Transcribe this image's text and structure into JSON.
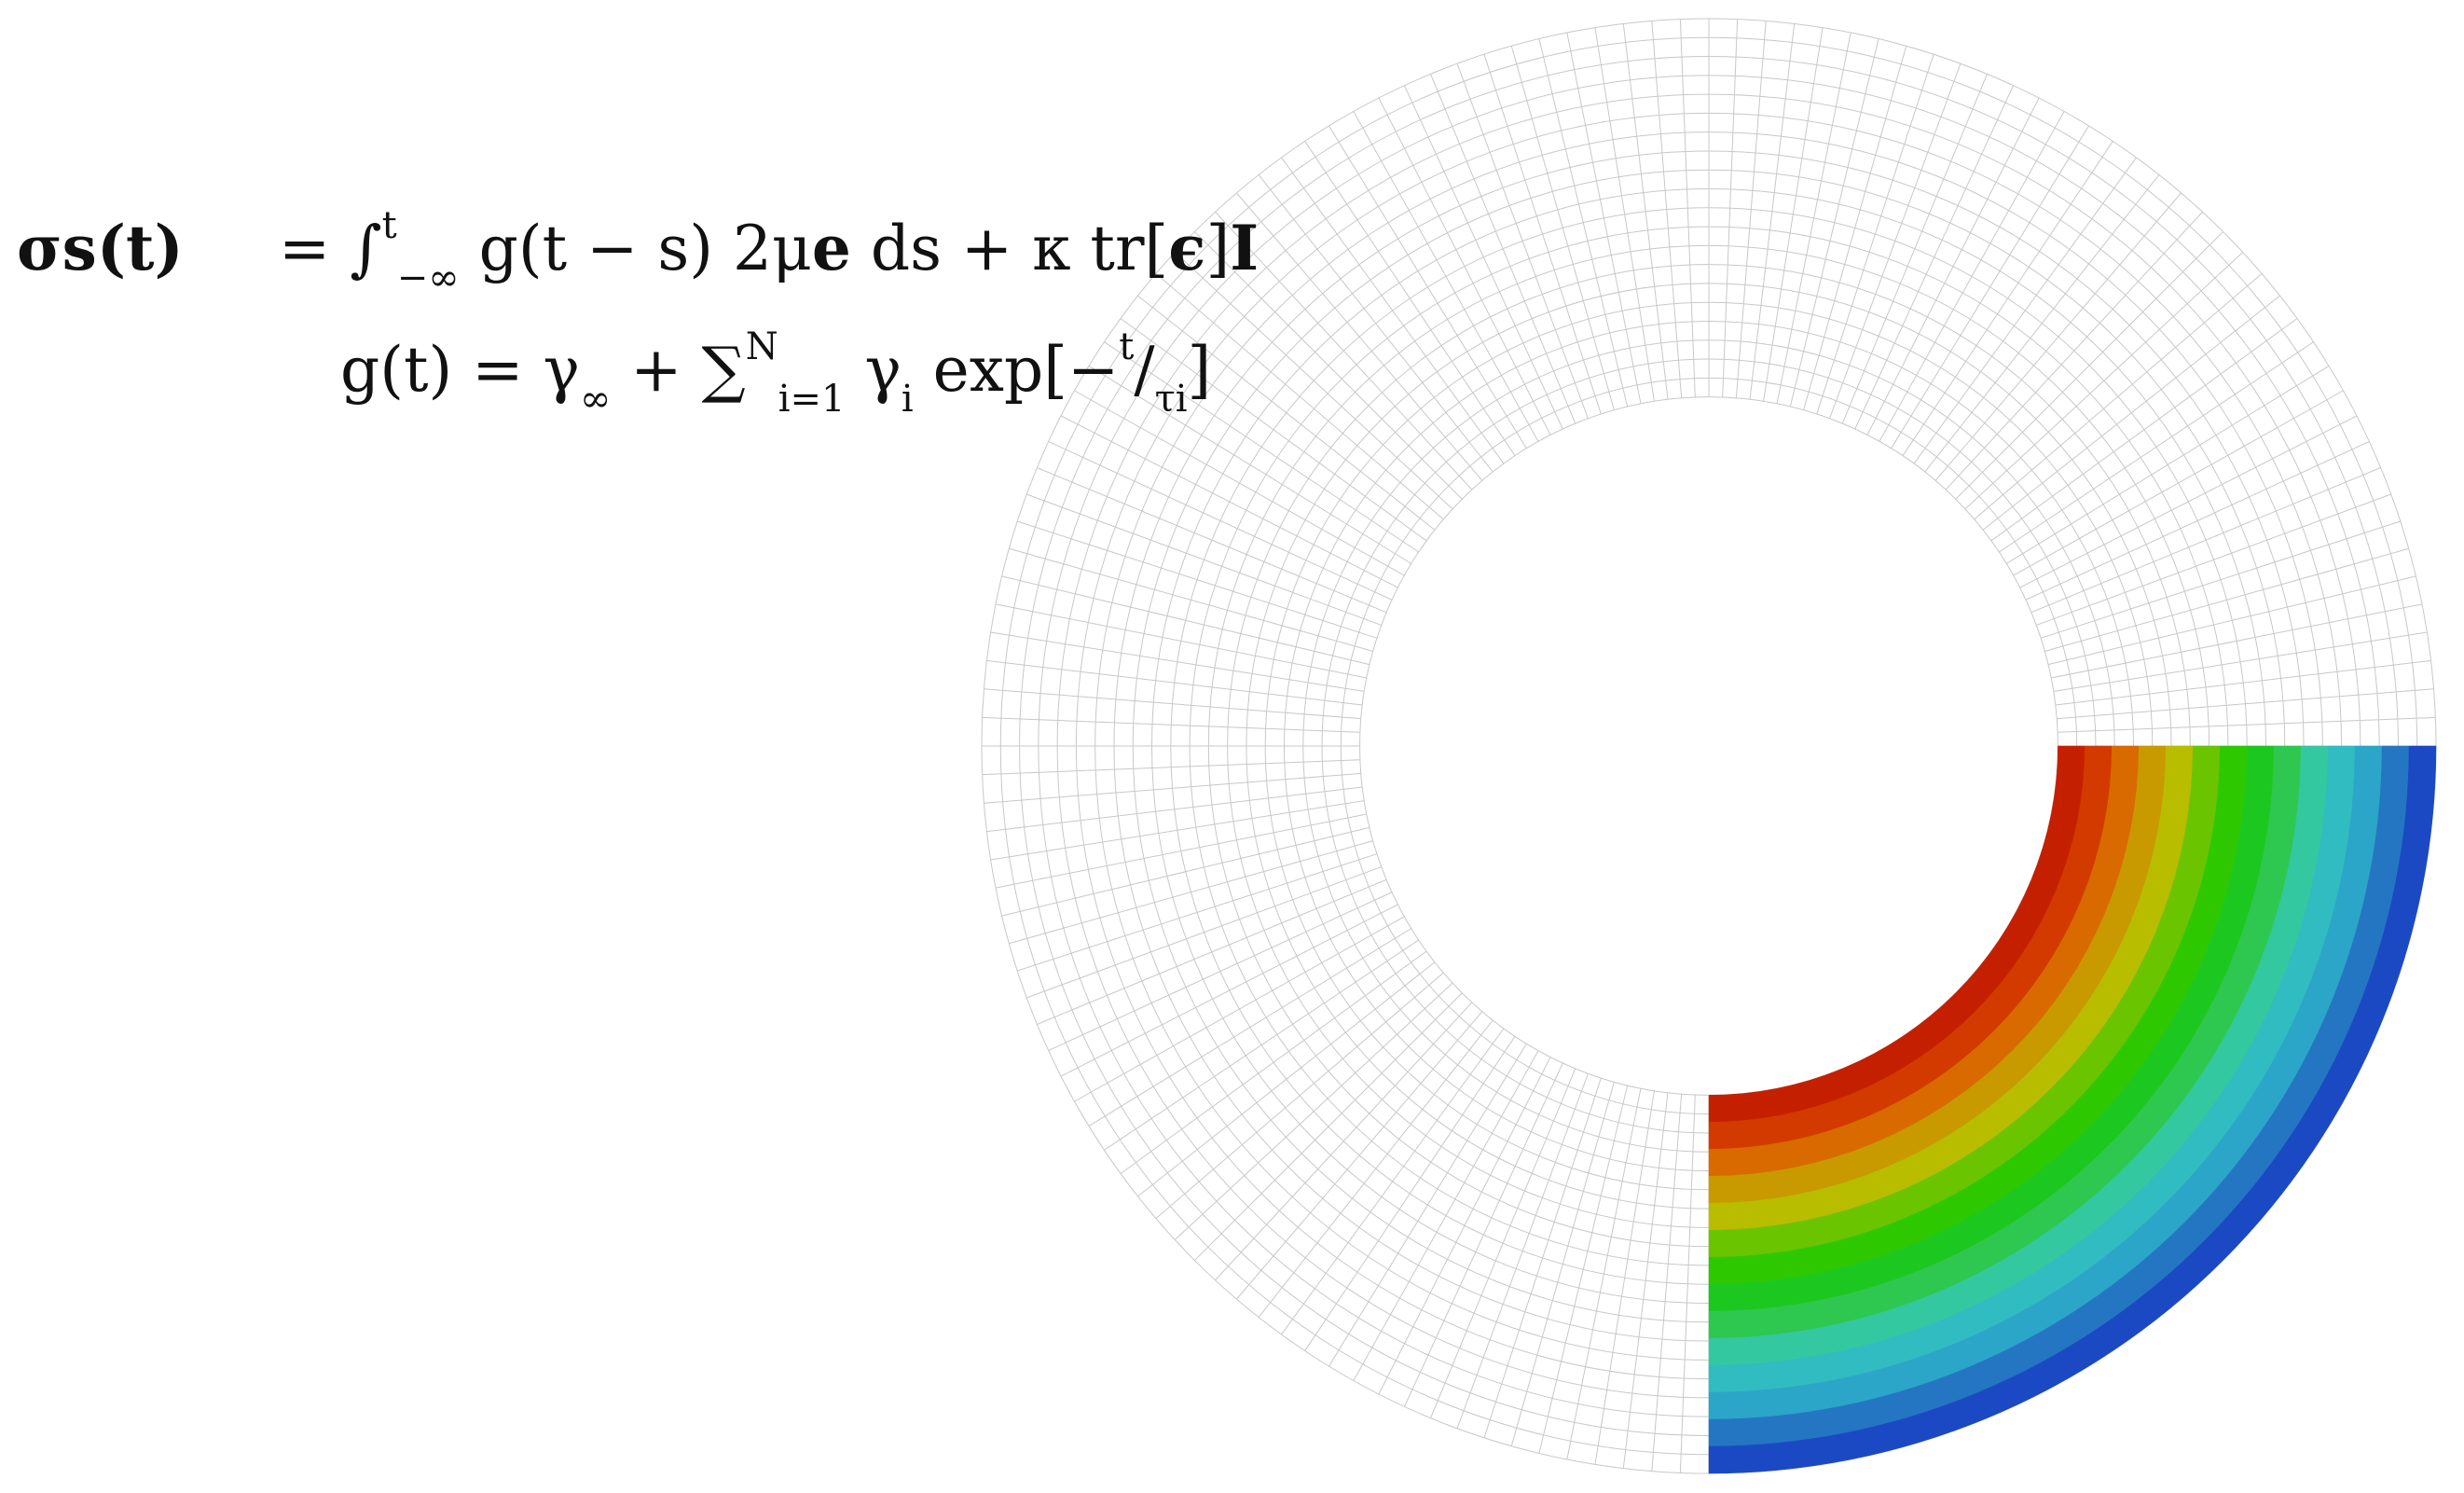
{
  "equations": {
    "line1": {
      "lhs": "σs(t)",
      "eq": "=",
      "integral": "∫",
      "upper": "t",
      "lower": "−∞",
      "integrand": " g(t − s) 2μ",
      "e_symbol": "e",
      "ds_term": " ds + κ tr[",
      "eps_symbol": "ϵ",
      "close": "]",
      "I_symbol": "I"
    },
    "line2": {
      "lhs": "g(t) = γ",
      "inf_sub": "∞",
      "plus": " + ",
      "sum": "∑",
      "sum_upper": "N",
      "sum_lower": "i=1",
      "term": " γ",
      "gamma_sub": "i",
      "exp_term": " exp[−",
      "frac_num": "t",
      "frac_sep": "/",
      "frac_den": "τ",
      "tau_sub": "i",
      "close": "]"
    }
  },
  "mesh": {
    "radial_divisions": 20,
    "angular_divisions": 160,
    "line_color": "#c8c8c8",
    "inner_to_outer_ratio": 0.48
  },
  "contour": {
    "quadrant": "bottom-right",
    "bands_inner_to_outer": [
      "#c42000",
      "#d23a00",
      "#d86a00",
      "#c89a00",
      "#b8bd00",
      "#6ac400",
      "#2ec800",
      "#1cc820",
      "#2ec850",
      "#34c8a0",
      "#30bcc0",
      "#2ba6c8",
      "#2476c2",
      "#1b49c3"
    ]
  }
}
